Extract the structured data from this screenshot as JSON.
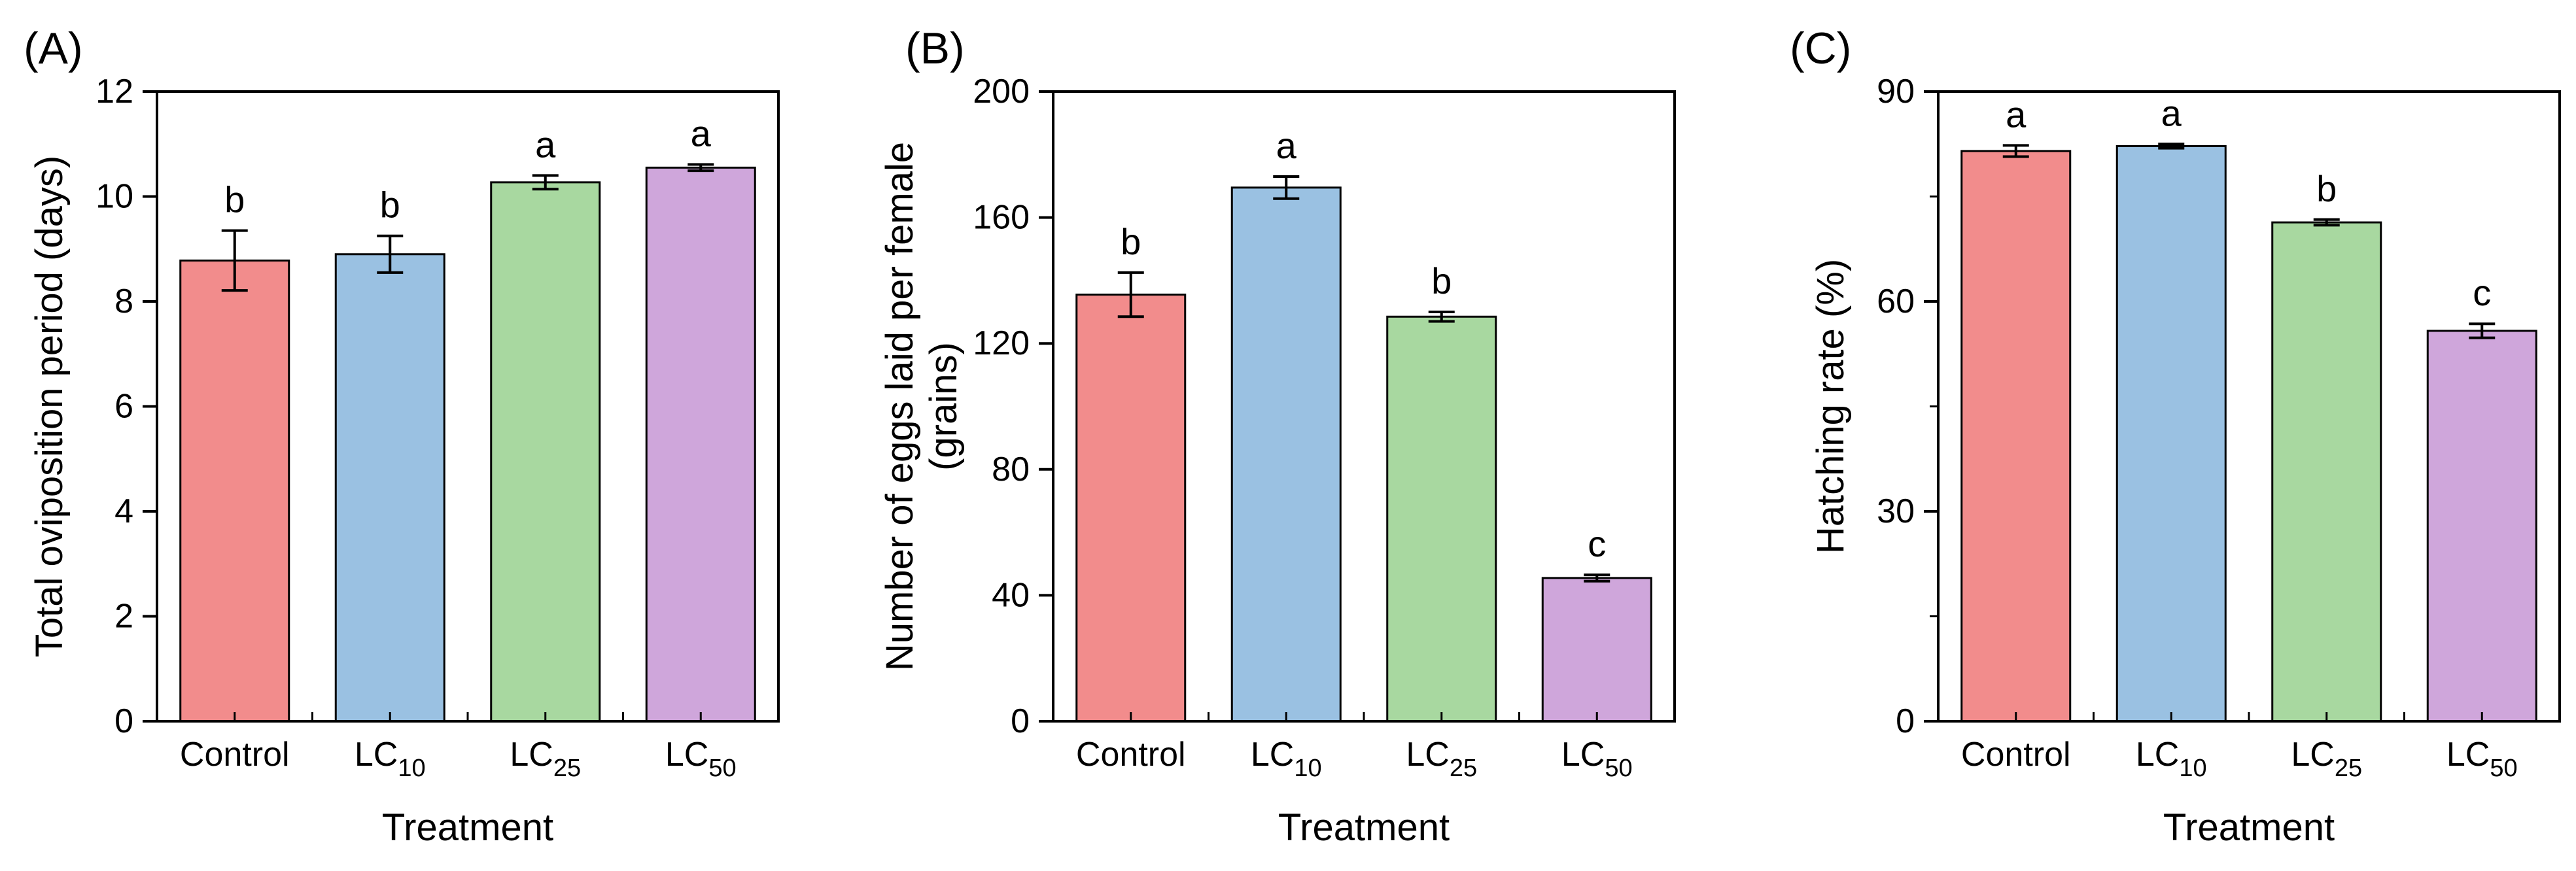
{
  "figure": {
    "background": "#ffffff",
    "text_color": "#000000"
  },
  "chart_data": [
    {
      "type": "bar",
      "panel_label": "(A)",
      "xlabel": "Treatment",
      "ylabel_lines": [
        "Total oviposition period (days)"
      ],
      "ylim": [
        0,
        12
      ],
      "yticks": [
        0,
        2,
        4,
        6,
        8,
        10,
        12
      ],
      "yticks_minor": [],
      "grid": false,
      "legend": null,
      "categories": [
        {
          "text": "Control",
          "sub": ""
        },
        {
          "text": "LC",
          "sub": "10"
        },
        {
          "text": "LC",
          "sub": "25"
        },
        {
          "text": "LC",
          "sub": "50"
        }
      ],
      "values": [
        8.78,
        8.9,
        10.27,
        10.55
      ],
      "errors": [
        0.57,
        0.35,
        0.13,
        0.06
      ],
      "sig_letters": [
        "b",
        "b",
        "a",
        "a"
      ],
      "bar_colors": [
        "#F28C8C",
        "#9AC1E2",
        "#A8D8A0",
        "#CFA6DB"
      ]
    },
    {
      "type": "bar",
      "panel_label": "(B)",
      "xlabel": "Treatment",
      "ylabel_lines": [
        "Number of eggs laid per female",
        "(grains)"
      ],
      "ylim": [
        0,
        200
      ],
      "yticks": [
        0,
        40,
        80,
        120,
        160,
        200
      ],
      "yticks_minor": [],
      "grid": false,
      "legend": null,
      "categories": [
        {
          "text": "Control",
          "sub": ""
        },
        {
          "text": "LC",
          "sub": "10"
        },
        {
          "text": "LC",
          "sub": "25"
        },
        {
          "text": "LC",
          "sub": "50"
        }
      ],
      "values": [
        135.5,
        169.5,
        128.5,
        45.5
      ],
      "errors": [
        7,
        3.5,
        1.5,
        1
      ],
      "sig_letters": [
        "b",
        "a",
        "b",
        "c"
      ],
      "bar_colors": [
        "#F28C8C",
        "#9AC1E2",
        "#A8D8A0",
        "#CFA6DB"
      ]
    },
    {
      "type": "bar",
      "panel_label": "(C)",
      "xlabel": "Treatment",
      "ylabel_lines": [
        "Hatching rate (%)"
      ],
      "ylim": [
        0,
        90
      ],
      "yticks": [
        0,
        30,
        60,
        90
      ],
      "yticks_minor": [
        15,
        45,
        75
      ],
      "grid": false,
      "legend": null,
      "categories": [
        {
          "text": "Control",
          "sub": ""
        },
        {
          "text": "LC",
          "sub": "10"
        },
        {
          "text": "LC",
          "sub": "25"
        },
        {
          "text": "LC",
          "sub": "50"
        }
      ],
      "values": [
        81.5,
        82.2,
        71.3,
        55.8
      ],
      "errors": [
        0.8,
        0.3,
        0.4,
        1.0
      ],
      "sig_letters": [
        "a",
        "a",
        "b",
        "c"
      ],
      "bar_colors": [
        "#F28C8C",
        "#9AC1E2",
        "#A8D8A0",
        "#CFA6DB"
      ]
    }
  ]
}
